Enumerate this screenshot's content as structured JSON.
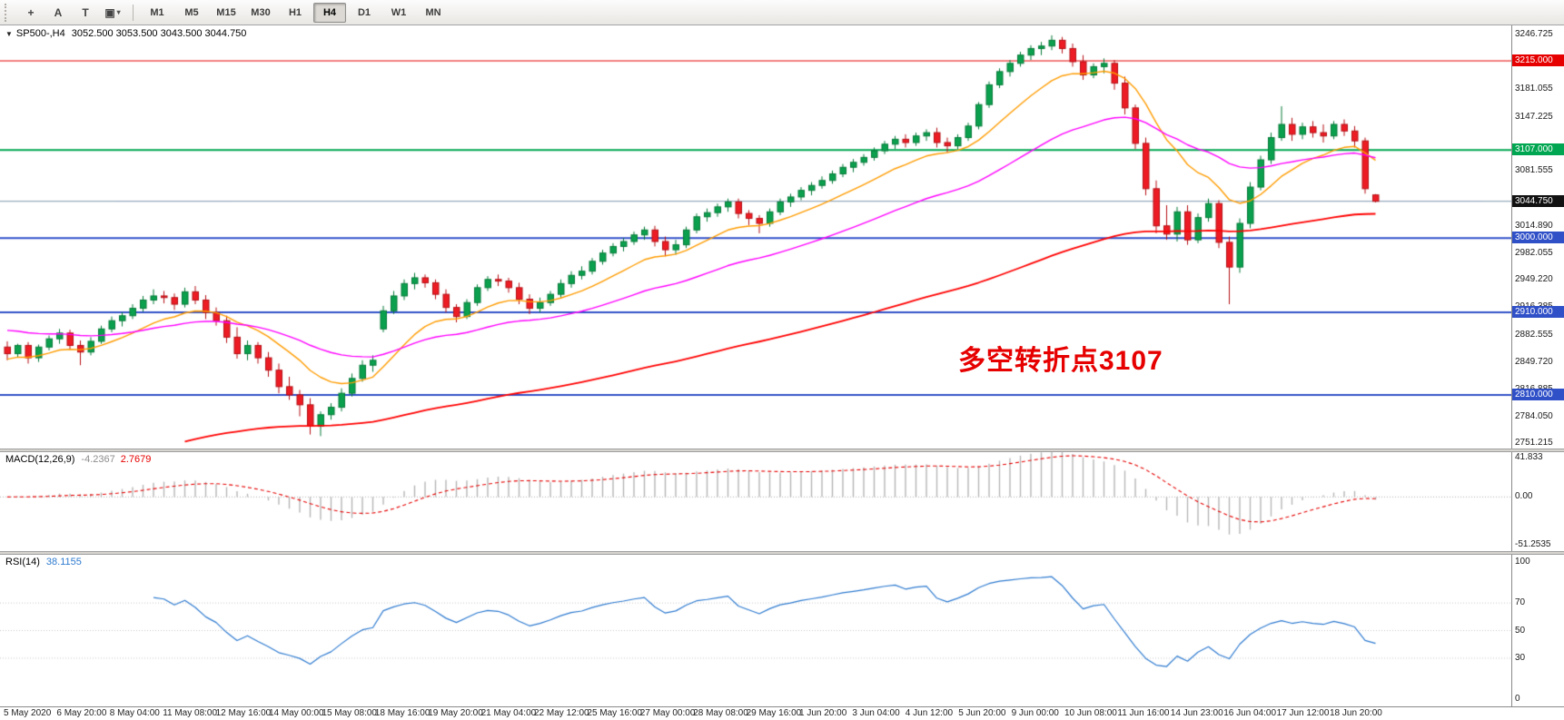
{
  "toolbar": {
    "left_icons": [
      {
        "name": "crosshair-icon",
        "glyph": "+"
      },
      {
        "name": "text-label-icon",
        "glyph": "A"
      },
      {
        "name": "text-frame-icon",
        "glyph": "T"
      },
      {
        "name": "objects-icon",
        "glyph": "▣",
        "caret": "▾"
      }
    ],
    "timeframes": [
      {
        "label": "M1",
        "active": false
      },
      {
        "label": "M5",
        "active": false
      },
      {
        "label": "M15",
        "active": false
      },
      {
        "label": "M30",
        "active": false
      },
      {
        "label": "H1",
        "active": false
      },
      {
        "label": "H4",
        "active": true
      },
      {
        "label": "D1",
        "active": false
      },
      {
        "label": "W1",
        "active": false
      },
      {
        "label": "MN",
        "active": false
      }
    ]
  },
  "chart": {
    "collapse_glyph": "▼",
    "symbol_period": "SP500-,H4",
    "ohlc_line": "3052.500 3053.500 3043.500 3044.750",
    "annotation": {
      "text": "多空转折点3107",
      "color": "#e60000"
    },
    "bid": {
      "value": 3044.75,
      "label": "3044.750",
      "line_color": "#7d96ad",
      "box_color": "#111111"
    },
    "levels": [
      {
        "value": 3215.0,
        "label": "3215.000",
        "color": "#e60000",
        "width": 1
      },
      {
        "value": 3107.0,
        "label": "3107.000",
        "color": "#00a651",
        "width": 2
      },
      {
        "value": 3000.0,
        "label": "3000.000",
        "color": "#3050c8",
        "width": 2
      },
      {
        "value": 2910.0,
        "label": "2910.000",
        "color": "#3050c8",
        "width": 2
      },
      {
        "value": 2810.0,
        "label": "2810.000",
        "color": "#3050c8",
        "width": 2
      }
    ]
  },
  "chart_data": {
    "type": "candlestick",
    "title": "SP500- H4 chart with MA overlays, MACD and RSI sub-windows",
    "symbol": "SP500-",
    "timeframe": "H4",
    "price_axis": {
      "min": 2745,
      "max": 3258,
      "ticks": [
        3246.725,
        3181.055,
        3147.225,
        3081.555,
        3014.89,
        2982.055,
        2949.22,
        2916.385,
        2882.555,
        2849.72,
        2816.885,
        2784.05,
        2751.215
      ]
    },
    "x_labels": [
      "5 May 2020",
      "6 May 20:00",
      "8 May 04:00",
      "11 May 08:00",
      "12 May 16:00",
      "14 May 00:00",
      "15 May 08:00",
      "18 May 16:00",
      "19 May 20:00",
      "21 May 04:00",
      "22 May 12:00",
      "25 May 16:00",
      "27 May 00:00",
      "28 May 08:00",
      "29 May 16:00",
      "1 Jun 20:00",
      "3 Jun 04:00",
      "4 Jun 12:00",
      "5 Jun 20:00",
      "9 Jun 00:00",
      "10 Jun 08:00",
      "11 Jun 16:00",
      "14 Jun 23:00",
      "16 Jun 04:00",
      "17 Jun 12:00",
      "18 Jun 20:00"
    ],
    "up_color": "#0ba04e",
    "up_border": "#067a38",
    "down_color": "#ed1c24",
    "down_border": "#b40f14",
    "candles": [
      [
        2868,
        2875,
        2852,
        2860
      ],
      [
        2860,
        2872,
        2856,
        2870
      ],
      [
        2870,
        2874,
        2848,
        2855
      ],
      [
        2855,
        2871,
        2850,
        2868
      ],
      [
        2868,
        2882,
        2864,
        2878
      ],
      [
        2878,
        2890,
        2872,
        2885
      ],
      [
        2885,
        2889,
        2866,
        2870
      ],
      [
        2870,
        2876,
        2846,
        2862
      ],
      [
        2862,
        2880,
        2858,
        2875
      ],
      [
        2875,
        2894,
        2872,
        2890
      ],
      [
        2890,
        2905,
        2886,
        2900
      ],
      [
        2900,
        2910,
        2893,
        2906
      ],
      [
        2906,
        2920,
        2902,
        2915
      ],
      [
        2915,
        2930,
        2911,
        2925
      ],
      [
        2925,
        2938,
        2920,
        2930
      ],
      [
        2930,
        2936,
        2921,
        2928
      ],
      [
        2928,
        2933,
        2913,
        2920
      ],
      [
        2920,
        2940,
        2916,
        2935
      ],
      [
        2935,
        2942,
        2920,
        2925
      ],
      [
        2925,
        2931,
        2902,
        2910
      ],
      [
        2910,
        2916,
        2894,
        2900
      ],
      [
        2900,
        2906,
        2873,
        2880
      ],
      [
        2880,
        2892,
        2854,
        2860
      ],
      [
        2860,
        2876,
        2852,
        2870
      ],
      [
        2870,
        2874,
        2848,
        2855
      ],
      [
        2855,
        2862,
        2832,
        2840
      ],
      [
        2840,
        2848,
        2812,
        2820
      ],
      [
        2820,
        2832,
        2804,
        2810
      ],
      [
        2810,
        2816,
        2784,
        2798
      ],
      [
        2798,
        2806,
        2762,
        2772
      ],
      [
        2772,
        2790,
        2760,
        2786
      ],
      [
        2786,
        2800,
        2780,
        2795
      ],
      [
        2795,
        2818,
        2790,
        2812
      ],
      [
        2812,
        2836,
        2808,
        2830
      ],
      [
        2830,
        2852,
        2826,
        2846
      ],
      [
        2846,
        2858,
        2838,
        2852
      ],
      [
        2890,
        2918,
        2886,
        2912
      ],
      [
        2912,
        2936,
        2908,
        2930
      ],
      [
        2930,
        2950,
        2925,
        2945
      ],
      [
        2945,
        2958,
        2938,
        2952
      ],
      [
        2952,
        2956,
        2940,
        2946
      ],
      [
        2946,
        2950,
        2926,
        2932
      ],
      [
        2932,
        2938,
        2910,
        2916
      ],
      [
        2916,
        2920,
        2898,
        2905
      ],
      [
        2905,
        2926,
        2902,
        2922
      ],
      [
        2922,
        2944,
        2918,
        2940
      ],
      [
        2940,
        2954,
        2936,
        2950
      ],
      [
        2950,
        2956,
        2942,
        2948
      ],
      [
        2948,
        2952,
        2934,
        2940
      ],
      [
        2940,
        2946,
        2920,
        2926
      ],
      [
        2926,
        2932,
        2908,
        2915
      ],
      [
        2915,
        2928,
        2910,
        2922
      ],
      [
        2922,
        2936,
        2918,
        2932
      ],
      [
        2932,
        2950,
        2928,
        2945
      ],
      [
        2945,
        2960,
        2940,
        2955
      ],
      [
        2955,
        2966,
        2950,
        2960
      ],
      [
        2960,
        2976,
        2956,
        2972
      ],
      [
        2972,
        2986,
        2968,
        2982
      ],
      [
        2982,
        2994,
        2978,
        2990
      ],
      [
        2990,
        3000,
        2984,
        2996
      ],
      [
        2996,
        3008,
        2992,
        3004
      ],
      [
        3004,
        3014,
        2998,
        3010
      ],
      [
        3010,
        3015,
        2990,
        2996
      ],
      [
        2996,
        3002,
        2978,
        2986
      ],
      [
        2986,
        2998,
        2980,
        2992
      ],
      [
        2992,
        3014,
        2988,
        3010
      ],
      [
        3010,
        3030,
        3006,
        3026
      ],
      [
        3026,
        3036,
        3020,
        3031
      ],
      [
        3031,
        3042,
        3026,
        3038
      ],
      [
        3038,
        3048,
        3032,
        3044
      ],
      [
        3044,
        3048,
        3024,
        3030
      ],
      [
        3030,
        3034,
        3016,
        3024
      ],
      [
        3024,
        3028,
        3006,
        3018
      ],
      [
        3018,
        3036,
        3014,
        3032
      ],
      [
        3032,
        3048,
        3028,
        3044
      ],
      [
        3044,
        3054,
        3038,
        3050
      ],
      [
        3050,
        3062,
        3046,
        3058
      ],
      [
        3058,
        3068,
        3052,
        3064
      ],
      [
        3064,
        3075,
        3060,
        3070
      ],
      [
        3070,
        3082,
        3066,
        3078
      ],
      [
        3078,
        3090,
        3074,
        3086
      ],
      [
        3086,
        3096,
        3080,
        3092
      ],
      [
        3092,
        3102,
        3088,
        3098
      ],
      [
        3098,
        3110,
        3094,
        3106
      ],
      [
        3106,
        3118,
        3102,
        3114
      ],
      [
        3114,
        3124,
        3108,
        3120
      ],
      [
        3120,
        3126,
        3110,
        3116
      ],
      [
        3116,
        3128,
        3112,
        3124
      ],
      [
        3124,
        3132,
        3118,
        3128
      ],
      [
        3128,
        3134,
        3110,
        3116
      ],
      [
        3116,
        3122,
        3104,
        3112
      ],
      [
        3112,
        3126,
        3108,
        3122
      ],
      [
        3122,
        3140,
        3118,
        3136
      ],
      [
        3136,
        3165,
        3132,
        3162
      ],
      [
        3162,
        3190,
        3158,
        3186
      ],
      [
        3186,
        3206,
        3182,
        3202
      ],
      [
        3202,
        3216,
        3196,
        3212
      ],
      [
        3212,
        3226,
        3208,
        3222
      ],
      [
        3222,
        3234,
        3216,
        3230
      ],
      [
        3230,
        3238,
        3222,
        3233
      ],
      [
        3233,
        3246,
        3228,
        3240
      ],
      [
        3240,
        3244,
        3224,
        3230
      ],
      [
        3230,
        3236,
        3208,
        3214
      ],
      [
        3214,
        3222,
        3192,
        3198
      ],
      [
        3198,
        3212,
        3194,
        3208
      ],
      [
        3208,
        3218,
        3200,
        3212
      ],
      [
        3212,
        3216,
        3180,
        3188
      ],
      [
        3188,
        3196,
        3150,
        3158
      ],
      [
        3158,
        3162,
        3108,
        3115
      ],
      [
        3115,
        3122,
        3052,
        3060
      ],
      [
        3060,
        3070,
        3006,
        3015
      ],
      [
        3015,
        3040,
        2998,
        3005
      ],
      [
        3005,
        3038,
        2996,
        3032
      ],
      [
        3032,
        3040,
        2992,
        2998
      ],
      [
        2998,
        3030,
        2994,
        3025
      ],
      [
        3025,
        3048,
        3020,
        3042
      ],
      [
        3042,
        3046,
        2988,
        2995
      ],
      [
        2995,
        3002,
        2920,
        2965
      ],
      [
        2965,
        3024,
        2958,
        3018
      ],
      [
        3018,
        3068,
        3012,
        3062
      ],
      [
        3062,
        3100,
        3058,
        3095
      ],
      [
        3095,
        3128,
        3090,
        3122
      ],
      [
        3122,
        3160,
        3118,
        3138
      ],
      [
        3138,
        3146,
        3118,
        3126
      ],
      [
        3126,
        3140,
        3120,
        3135
      ],
      [
        3135,
        3142,
        3122,
        3128
      ],
      [
        3128,
        3138,
        3116,
        3124
      ],
      [
        3124,
        3142,
        3120,
        3138
      ],
      [
        3138,
        3144,
        3124,
        3130
      ],
      [
        3130,
        3136,
        3110,
        3118
      ],
      [
        3118,
        3122,
        3054,
        3060
      ],
      [
        3052.5,
        3053.5,
        3043.5,
        3044.75
      ]
    ],
    "overlays": [
      {
        "name": "ma-fast",
        "period": 12,
        "seed": 2852,
        "color": "#ff9c00",
        "width": 1.4
      },
      {
        "name": "ma-medium",
        "period": 34,
        "seed": 2890,
        "color": "#ff00ff",
        "width": 1.4
      },
      {
        "name": "ma-slow",
        "period": 110,
        "seed": 2750,
        "start_index": 17,
        "color": "#ff0000",
        "width": 1.8
      }
    ],
    "indicators": [
      {
        "name": "MACD",
        "label": "MACD(12,26,9)",
        "value_main": "-4.2367",
        "value_signal": "2.7679",
        "fast": 12,
        "slow": 26,
        "signal": 9,
        "axis": {
          "min": -58,
          "max": 48
        },
        "ticks": [
          {
            "v": 41.833,
            "label": "41.833"
          },
          {
            "v": 0,
            "label": "0.00"
          },
          {
            "v": -51.2535,
            "label": "-51.2535"
          }
        ],
        "histogram_color": "#b6b6b6",
        "signal_color": "#e60000"
      },
      {
        "name": "RSI",
        "label": "RSI(14)",
        "value": "38.1155",
        "period": 14,
        "axis": {
          "min": -5,
          "max": 105
        },
        "ticks": [
          {
            "v": 100,
            "label": "100"
          },
          {
            "v": 70,
            "label": "70"
          },
          {
            "v": 50,
            "label": "50"
          },
          {
            "v": 30,
            "label": "30"
          },
          {
            "v": 0,
            "label": "0"
          }
        ],
        "levels": [
          70,
          50,
          30
        ],
        "line_color": "#2f7bd0"
      }
    ]
  },
  "time_axis": {
    "labels": [
      "5 May 2020",
      "6 May 20:00",
      "8 May 04:00",
      "11 May 08:00",
      "12 May 16:00",
      "14 May 00:00",
      "15 May 08:00",
      "18 May 16:00",
      "19 May 20:00",
      "21 May 04:00",
      "22 May 12:00",
      "25 May 16:00",
      "27 May 00:00",
      "28 May 08:00",
      "29 May 16:00",
      "1 Jun 20:00",
      "3 Jun 04:00",
      "4 Jun 12:00",
      "5 Jun 20:00",
      "9 Jun 00:00",
      "10 Jun 08:00",
      "11 Jun 16:00",
      "14 Jun 23:00",
      "16 Jun 04:00",
      "17 Jun 12:00",
      "18 Jun 20:00"
    ]
  }
}
